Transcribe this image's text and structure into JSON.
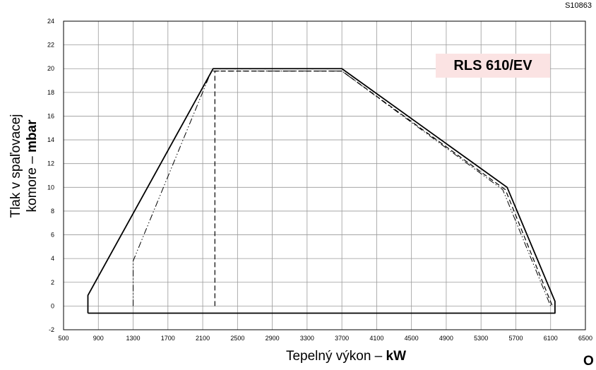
{
  "code": "S10863",
  "model": "RLS 610/EV",
  "corner_text": "O",
  "chart_data": {
    "type": "line",
    "title": "",
    "ylabel_line1": "Tlak v spaľovacej",
    "ylabel_line2_regular": "komore – ",
    "ylabel_line2_bold": "mbar",
    "xlabel_regular": "Tepelný výkon – ",
    "xlabel_bold": "kW",
    "xlim": [
      500,
      6500
    ],
    "ylim": [
      -2,
      24
    ],
    "x_ticks": [
      500,
      900,
      1300,
      1700,
      2100,
      2500,
      2900,
      3300,
      3700,
      4100,
      4500,
      4900,
      5300,
      5700,
      6100,
      6500
    ],
    "y_ticks": [
      -2,
      0,
      2,
      4,
      6,
      8,
      10,
      12,
      14,
      16,
      18,
      20,
      22,
      24
    ],
    "grid": true,
    "series": [
      {
        "style": "solid",
        "points": [
          [
            780,
            -0.6
          ],
          [
            780,
            0.9
          ],
          [
            2220,
            20
          ],
          [
            3700,
            20
          ],
          [
            5600,
            10
          ],
          [
            6150,
            0.4
          ],
          [
            6150,
            -0.6
          ],
          [
            780,
            -0.6
          ]
        ]
      },
      {
        "style": "dashed",
        "points": [
          [
            2240,
            0
          ],
          [
            2240,
            19.8
          ],
          [
            3700,
            19.8
          ],
          [
            5580,
            9.8
          ],
          [
            6120,
            0
          ]
        ]
      },
      {
        "style": "dash-dot",
        "points": [
          [
            1300,
            0
          ],
          [
            1300,
            3.8
          ],
          [
            2200,
            19.8
          ],
          [
            3700,
            19.8
          ],
          [
            5550,
            9.8
          ],
          [
            6100,
            0
          ]
        ]
      }
    ]
  }
}
